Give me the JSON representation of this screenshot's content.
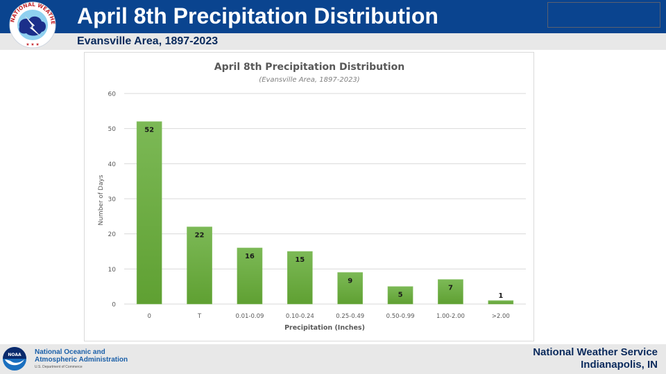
{
  "header": {
    "title": "April 8th Precipitation Distribution",
    "subtitle": "Evansville Area, 1897-2023",
    "logo": "nws-logo-icon"
  },
  "footer": {
    "noaa_line1": "National Oceanic and",
    "noaa_line2": "Atmospheric Administration",
    "noaa_dept": "U.S. Department of Commerce",
    "nws_line1": "National Weather Service",
    "nws_line2": "Indianapolis, IN",
    "logo": "noaa-logo-icon"
  },
  "colors": {
    "header_blue": "#0a448f",
    "bar_green": "#6aab3f",
    "band_gray": "#e8e8e8"
  },
  "chart_data": {
    "type": "bar",
    "title": "April 8th Precipitation Distribution",
    "subtitle": "(Evansville Area, 1897-2023)",
    "xlabel": "Precipitation (Inches)",
    "ylabel": "Number of Days",
    "categories": [
      "0",
      "T",
      "0.01-0.09",
      "0.10-0.24",
      "0.25-0.49",
      "0.50-0.99",
      "1.00-2.00",
      ">2.00"
    ],
    "values": [
      52,
      22,
      16,
      15,
      9,
      5,
      7,
      1
    ],
    "ylim": [
      0,
      60
    ],
    "yticks": [
      0,
      10,
      20,
      30,
      40,
      50,
      60
    ],
    "grid": true,
    "legend": "none",
    "data_labels": true
  }
}
